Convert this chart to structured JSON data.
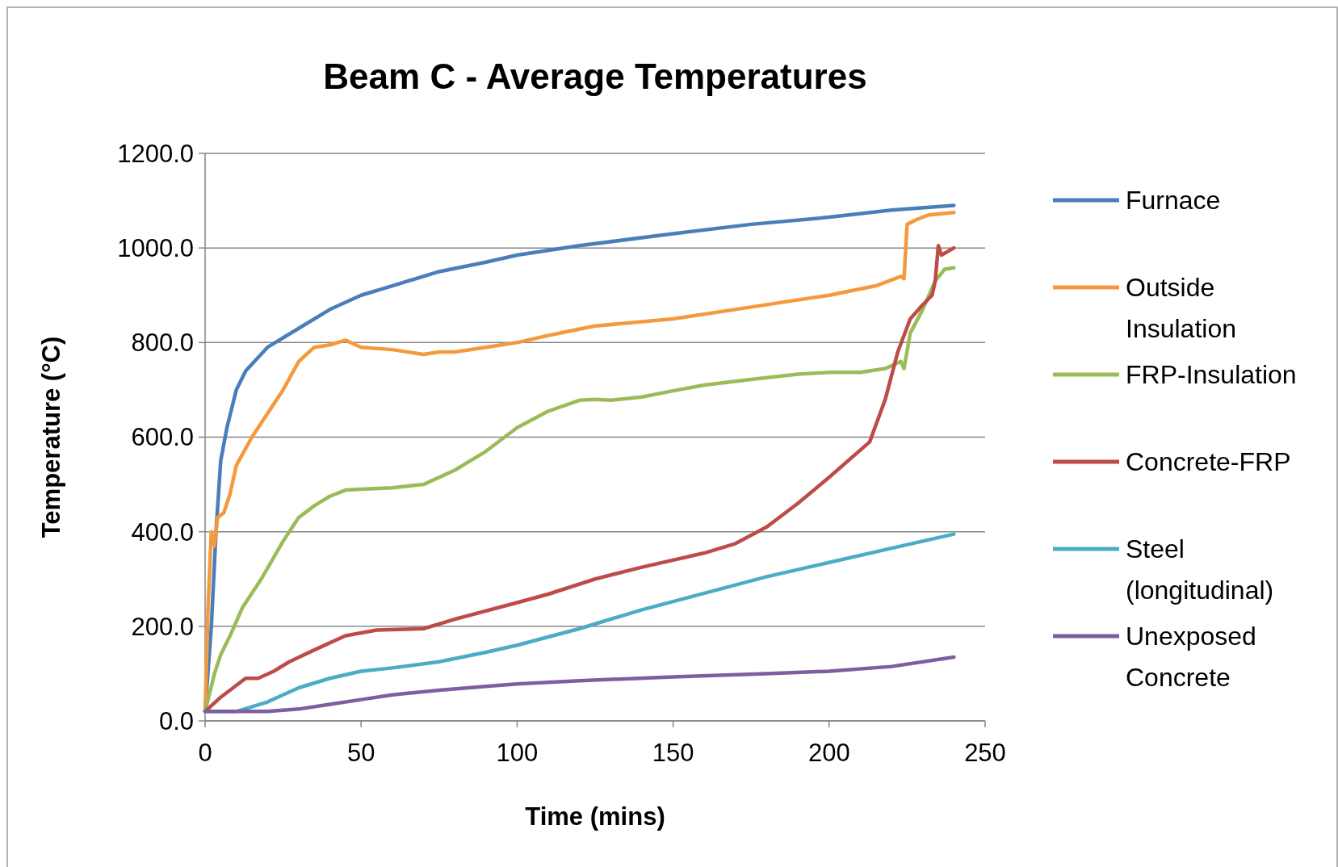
{
  "chart_data": {
    "type": "line",
    "title": "Beam C - Average Temperatures",
    "xlabel": "Time (mins)",
    "ylabel": "Temperature (°C)",
    "xlim": [
      0,
      250
    ],
    "xticks": [
      0,
      50,
      100,
      150,
      200,
      250
    ],
    "ylim": [
      0,
      1200
    ],
    "yticks": [
      {
        "value": 0,
        "label": "0.0"
      },
      {
        "value": 200,
        "label": "200.0"
      },
      {
        "value": 400,
        "label": "400.0"
      },
      {
        "value": 600,
        "label": "600.0"
      },
      {
        "value": 800,
        "label": "800.0"
      },
      {
        "value": 1000,
        "label": "1000.0"
      },
      {
        "value": 1200,
        "label": "1200.0"
      }
    ],
    "grid": "y",
    "legend": "right",
    "marker": "none",
    "line_style": "solid",
    "series": [
      {
        "name": "Furnace",
        "color": "#4a7ebb",
        "x": [
          0,
          2,
          3.5,
          5,
          7,
          10,
          13,
          20,
          30,
          40,
          50,
          60,
          75,
          90,
          100,
          120,
          150,
          175,
          200,
          220,
          240
        ],
        "values": [
          20,
          200,
          400,
          550,
          620,
          700,
          740,
          790,
          830,
          870,
          900,
          920,
          950,
          970,
          985,
          1005,
          1030,
          1050,
          1065,
          1080,
          1090
        ]
      },
      {
        "name": "Outside Insulation",
        "color": "#f59a3c",
        "x": [
          0,
          1,
          2,
          3,
          4,
          6,
          8,
          10,
          15,
          20,
          25,
          30,
          35,
          40,
          45,
          50,
          60,
          70,
          75,
          80,
          90,
          100,
          110,
          125,
          150,
          175,
          200,
          215,
          223,
          224,
          225,
          228,
          232,
          240
        ],
        "values": [
          20,
          250,
          400,
          370,
          430,
          440,
          480,
          540,
          600,
          650,
          700,
          760,
          790,
          795,
          805,
          790,
          785,
          775,
          780,
          780,
          790,
          800,
          815,
          835,
          850,
          875,
          900,
          920,
          940,
          935,
          1050,
          1060,
          1070,
          1075
        ]
      },
      {
        "name": "FRP-Insulation",
        "color": "#9bbb59",
        "x": [
          0,
          3,
          5,
          8,
          12,
          18,
          25,
          30,
          35,
          40,
          45,
          50,
          60,
          70,
          80,
          90,
          100,
          110,
          120,
          125,
          130,
          140,
          150,
          160,
          175,
          190,
          200,
          210,
          218,
          223,
          224,
          226,
          230,
          234,
          237,
          240
        ],
        "values": [
          20,
          100,
          140,
          180,
          240,
          300,
          380,
          430,
          455,
          475,
          488,
          490,
          493,
          500,
          530,
          570,
          620,
          655,
          678,
          680,
          678,
          685,
          698,
          710,
          722,
          733,
          737,
          737,
          745,
          760,
          745,
          820,
          870,
          930,
          955,
          958
        ]
      },
      {
        "name": "Concrete-FRP",
        "color": "#be4b48",
        "x": [
          0,
          5,
          10,
          13,
          17,
          22,
          27,
          35,
          45,
          55,
          70,
          80,
          100,
          110,
          125,
          140,
          160,
          170,
          180,
          190,
          200,
          213,
          218,
          222,
          226,
          230,
          233,
          234,
          235,
          236,
          240
        ],
        "values": [
          20,
          50,
          75,
          90,
          90,
          105,
          125,
          150,
          180,
          192,
          195,
          215,
          250,
          268,
          300,
          325,
          355,
          375,
          410,
          460,
          515,
          590,
          680,
          780,
          850,
          880,
          900,
          930,
          1005,
          985,
          1000
        ]
      },
      {
        "name": "Steel (longitudinal)",
        "color": "#4bacc6",
        "x": [
          0,
          10,
          20,
          30,
          40,
          50,
          60,
          75,
          90,
          100,
          120,
          140,
          160,
          180,
          200,
          220,
          240
        ],
        "values": [
          20,
          20,
          40,
          70,
          90,
          105,
          112,
          125,
          145,
          160,
          195,
          235,
          270,
          305,
          335,
          365,
          395
        ]
      },
      {
        "name": "Unexposed Concrete",
        "color": "#7d5fa0",
        "x": [
          0,
          20,
          30,
          40,
          50,
          60,
          75,
          90,
          100,
          120,
          150,
          180,
          200,
          220,
          240
        ],
        "values": [
          20,
          20,
          25,
          35,
          45,
          55,
          65,
          73,
          78,
          85,
          93,
          100,
          105,
          115,
          135
        ]
      }
    ]
  }
}
